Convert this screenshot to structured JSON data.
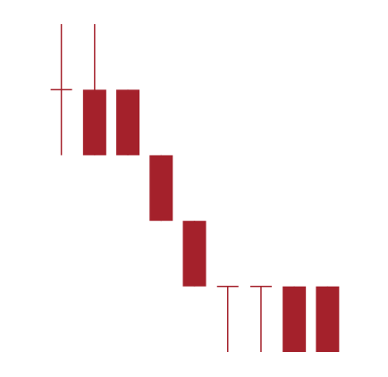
{
  "chart_data": {
    "type": "candlestick",
    "title": "",
    "xlabel": "",
    "ylabel": "",
    "grid": false,
    "legend": "none",
    "ylim": [
      0,
      10
    ],
    "candles": [
      {
        "open": 9.0,
        "high": 10.0,
        "low": 8.0,
        "close": 9.0
      },
      {
        "open": 9.0,
        "high": 10.0,
        "low": 8.0,
        "close": 8.0
      },
      {
        "open": 9.0,
        "high": 9.0,
        "low": 8.0,
        "close": 8.0
      },
      {
        "open": 8.0,
        "high": 8.0,
        "low": 7.0,
        "close": 7.0
      },
      {
        "open": 7.0,
        "high": 7.0,
        "low": 6.0,
        "close": 6.0
      },
      {
        "open": 6.0,
        "high": 6.0,
        "low": 5.0,
        "close": 6.0
      },
      {
        "open": 6.0,
        "high": 6.0,
        "low": 5.0,
        "close": 6.0
      },
      {
        "open": 6.0,
        "high": 6.0,
        "low": 5.0,
        "close": 5.0
      },
      {
        "open": 6.0,
        "high": 6.0,
        "low": 5.0,
        "close": 5.0
      }
    ],
    "colors": {
      "up": "#a4212b",
      "down": "#a4212b",
      "wick": "#a4212b",
      "background": "#ffffff"
    }
  }
}
